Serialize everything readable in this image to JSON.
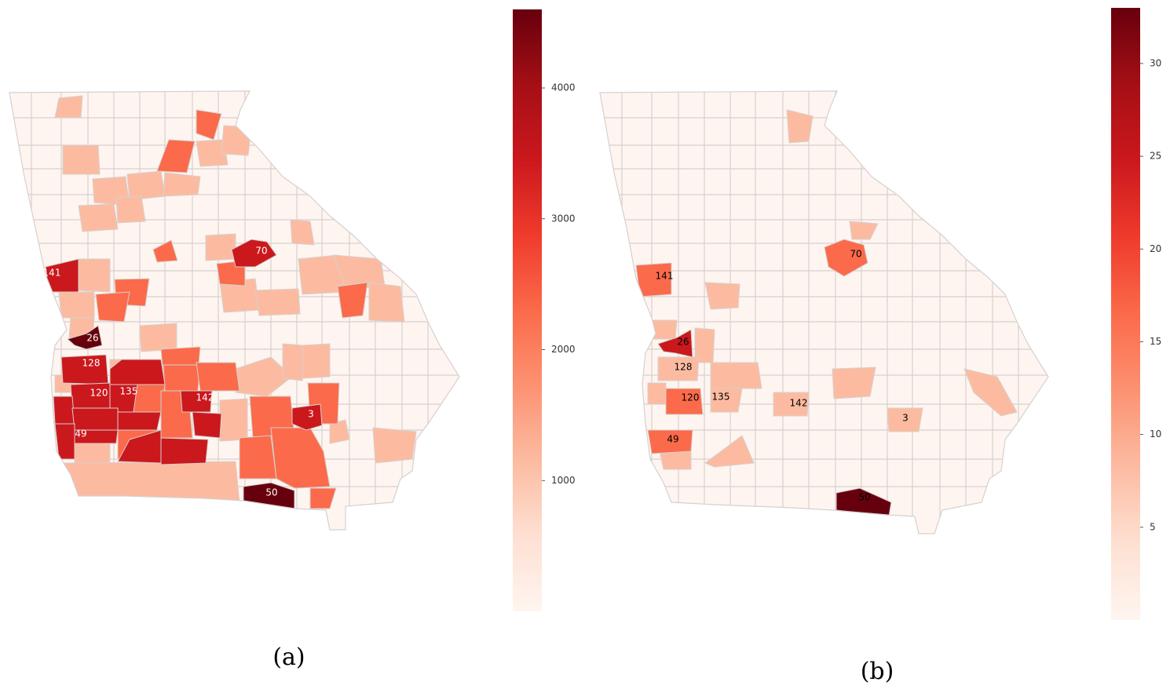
{
  "panels": [
    {
      "id": "a",
      "caption": "(a)",
      "colorbar": {
        "ticks": [
          "1000",
          "2000",
          "3000",
          "4000"
        ],
        "tick_values": [
          1000,
          2000,
          3000,
          4000
        ],
        "min": 0,
        "max": 4600
      },
      "labels": [
        {
          "text": "141",
          "color": "#ffffff"
        },
        {
          "text": "70",
          "color": "#ffffff"
        },
        {
          "text": "26",
          "color": "#ffffff"
        },
        {
          "text": "128",
          "color": "#ffffff"
        },
        {
          "text": "120",
          "color": "#ffffff"
        },
        {
          "text": "135",
          "color": "#ffffff"
        },
        {
          "text": "142",
          "color": "#ffffff"
        },
        {
          "text": "3",
          "color": "#ffffff"
        },
        {
          "text": "49",
          "color": "#ffffff"
        },
        {
          "text": "50",
          "color": "#ffffff"
        }
      ]
    },
    {
      "id": "b",
      "caption": "(b)",
      "colorbar": {
        "ticks": [
          "5",
          "10",
          "15",
          "20",
          "25",
          "30"
        ],
        "tick_values": [
          5,
          10,
          15,
          20,
          25,
          30
        ],
        "min": 0,
        "max": 33
      },
      "labels": [
        {
          "text": "141",
          "color": "#000000"
        },
        {
          "text": "70",
          "color": "#000000"
        },
        {
          "text": "26",
          "color": "#000000"
        },
        {
          "text": "128",
          "color": "#000000"
        },
        {
          "text": "120",
          "color": "#000000"
        },
        {
          "text": "135",
          "color": "#000000"
        },
        {
          "text": "142",
          "color": "#000000"
        },
        {
          "text": "3",
          "color": "#000000"
        },
        {
          "text": "49",
          "color": "#000000"
        },
        {
          "text": "50",
          "color": "#000000"
        }
      ]
    }
  ],
  "colormap": "Reds",
  "colors": {
    "base": "#fff5f0",
    "light": "#fcbba1",
    "mid": "#fb6a4a",
    "strong": "#cb181d",
    "dark": "#67000d",
    "border": "#d6d0ce"
  }
}
